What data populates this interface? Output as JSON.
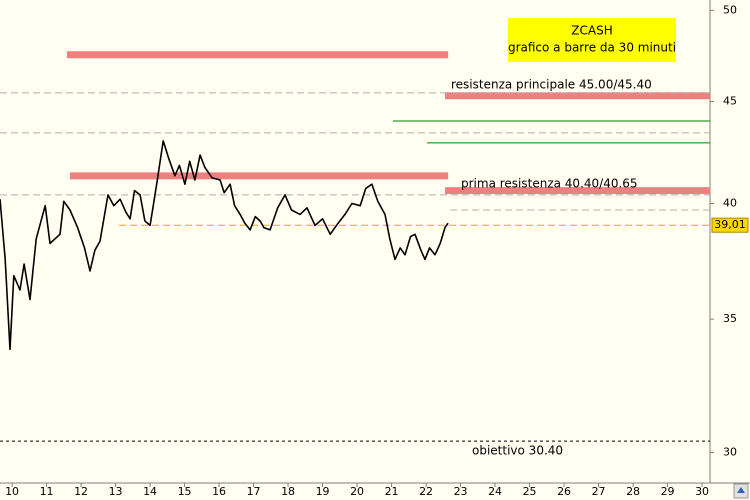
{
  "chart_data": {
    "type": "line",
    "title": "ZCASH",
    "subtitle": "grafico a barre da 30 minuti",
    "log_scale": true,
    "grid": false,
    "xlim": [
      9.65,
      30.23
    ],
    "xticks": [
      10,
      11,
      12,
      13,
      14,
      15,
      16,
      17,
      18,
      19,
      20,
      21,
      22,
      23,
      24,
      25,
      26,
      27,
      28,
      29,
      30
    ],
    "ylim": [
      28.4,
      50.6
    ],
    "yticks": [
      30,
      35,
      40,
      45,
      50
    ],
    "series": [
      {
        "color": "#000000",
        "x": [
          9.65,
          9.8,
          9.94,
          10.05,
          10.23,
          10.35,
          10.52,
          10.7,
          10.96,
          11.1,
          11.39,
          11.5,
          11.68,
          11.9,
          12.1,
          12.26,
          12.4,
          12.55,
          12.78,
          12.95,
          13.13,
          13.3,
          13.42,
          13.55,
          13.71,
          13.85,
          14.0,
          14.2,
          14.38,
          14.55,
          14.72,
          14.85,
          15.01,
          15.15,
          15.3,
          15.45,
          15.59,
          15.8,
          16.03,
          16.15,
          16.32,
          16.45,
          16.61,
          16.75,
          16.9,
          17.05,
          17.19,
          17.3,
          17.48,
          17.7,
          17.91,
          18.1,
          18.35,
          18.55,
          18.78,
          19.0,
          19.22,
          19.45,
          19.65,
          19.85,
          20.09,
          20.25,
          20.43,
          20.6,
          20.81,
          20.95,
          21.1,
          21.25,
          21.39,
          21.55,
          21.68,
          21.85,
          21.97,
          22.1,
          22.26,
          22.41,
          22.55,
          22.64
        ],
        "values": [
          40.2,
          37.5,
          33.8,
          36.8,
          36.2,
          37.3,
          35.8,
          38.4,
          39.9,
          38.2,
          38.6,
          40.1,
          39.7,
          38.9,
          38.0,
          37.0,
          37.9,
          38.3,
          40.4,
          39.9,
          40.2,
          39.6,
          39.3,
          40.6,
          40.4,
          39.2,
          39.0,
          41.0,
          43.0,
          42.1,
          41.3,
          41.8,
          40.9,
          42.0,
          41.1,
          42.3,
          41.7,
          41.2,
          41.1,
          40.5,
          40.9,
          39.9,
          39.5,
          39.1,
          38.8,
          39.4,
          39.2,
          38.9,
          38.8,
          39.8,
          40.4,
          39.7,
          39.5,
          39.8,
          39.0,
          39.3,
          38.6,
          39.1,
          39.5,
          40.0,
          39.9,
          40.7,
          40.9,
          40.1,
          39.5,
          38.4,
          37.5,
          38.0,
          37.7,
          38.5,
          38.6,
          37.9,
          37.5,
          38.0,
          37.7,
          38.2,
          38.9,
          39.1
        ]
      }
    ],
    "levels": [
      {
        "value": 47.5,
        "from": 11.59,
        "to": 22.64,
        "color": "#f08080",
        "style": "band"
      },
      {
        "value": 41.3,
        "from": 11.68,
        "to": 22.64,
        "color": "#f08080",
        "style": "band"
      },
      {
        "value": 45.3,
        "from": 22.55,
        "to": 30.23,
        "color": "#f08080",
        "style": "band"
      },
      {
        "value": 40.6,
        "from": 22.55,
        "to": 30.23,
        "color": "#f08080",
        "style": "band"
      },
      {
        "value": 44.0,
        "from": 21.04,
        "to": 30.23,
        "color": "#008000",
        "style": "solid"
      },
      {
        "value": 42.9,
        "from": 22.03,
        "to": 30.23,
        "color": "#008000",
        "style": "solid"
      },
      {
        "value": 45.45,
        "from": 9.65,
        "to": 30.23,
        "color": "#b0b0b0",
        "style": "dashed"
      },
      {
        "value": 43.4,
        "from": 9.65,
        "to": 30.23,
        "color": "#b0b0b0",
        "style": "dashed"
      },
      {
        "value": 40.4,
        "from": 9.65,
        "to": 30.23,
        "color": "#b0b0b0",
        "style": "dashed"
      },
      {
        "value": 39.7,
        "from": 22.7,
        "to": 30.23,
        "color": "#b0b0b0",
        "style": "dashed"
      },
      {
        "value": 39.01,
        "from": 13.1,
        "to": 30.23,
        "color": "#e8a020",
        "style": "dashed"
      },
      {
        "value": 30.4,
        "from": 9.65,
        "to": 30.23,
        "color": "#000000",
        "style": "dashed"
      }
    ],
    "annotations": [
      "resistenza principale 45.00/45.40",
      "prima resistenza 40.40/40.65",
      "obiettivo 30.40"
    ],
    "last_price": {
      "value": 39.01,
      "label": "39,01",
      "color": "#ffd700"
    }
  }
}
